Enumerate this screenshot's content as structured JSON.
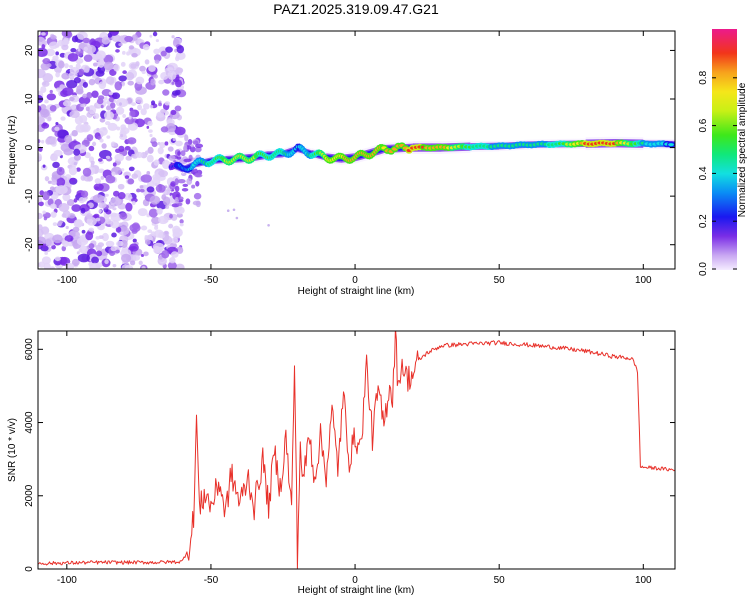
{
  "title": "PAZ1.2025.319.09.47.G21",
  "chart_data": [
    {
      "type": "heatmap",
      "xlabel": "Height of straight line (km)",
      "ylabel": "Frequency (Hz)",
      "xlim": [
        -110,
        111
      ],
      "ylim": [
        -25,
        24
      ],
      "xticks": [
        -100,
        -50,
        0,
        50,
        100
      ],
      "yticks": [
        -20,
        -10,
        0,
        10,
        20
      ],
      "noise_region_x": [
        -110,
        -60
      ],
      "ridge": {
        "x": [
          -64,
          -60,
          -56,
          -50,
          -45,
          -40,
          -35,
          -30,
          -25,
          -20,
          -15,
          -10,
          -5,
          0,
          5,
          10,
          20,
          30,
          40,
          50,
          60,
          70,
          80,
          90,
          100,
          111
        ],
        "freq": [
          -3.5,
          -4.5,
          -3.5,
          -2.7,
          -2.5,
          -2.3,
          -2.0,
          -1.5,
          -1.3,
          -0.3,
          -1.2,
          -2.0,
          -2.3,
          -2.0,
          -1.2,
          -0.3,
          0.0,
          0.0,
          0.2,
          0.3,
          0.6,
          0.7,
          0.8,
          0.9,
          0.8,
          0.7
        ],
        "amplitude": [
          0.25,
          0.35,
          0.45,
          0.55,
          0.7,
          0.75,
          0.7,
          0.6,
          0.55,
          0.4,
          0.55,
          0.8,
          0.85,
          0.9,
          0.9,
          0.85,
          0.95,
          0.9,
          0.6,
          0.5,
          0.5,
          0.55,
          0.95,
          0.95,
          0.5,
          0.4
        ]
      },
      "colorbar": {
        "label": "Normalized spectral amplitude",
        "ticks": [
          "0.0",
          "0.2",
          "0.4",
          "0.6",
          "0.8"
        ],
        "range": [
          0,
          1
        ]
      }
    },
    {
      "type": "line",
      "xlabel": "Height of straight line (km)",
      "ylabel": "SNR (10 * v/v)",
      "xlim": [
        -110,
        111
      ],
      "ylim": [
        0,
        6500
      ],
      "xticks": [
        -100,
        -50,
        0,
        50,
        100
      ],
      "yticks": [
        0,
        2000,
        4000,
        6000
      ],
      "series": [
        {
          "name": "SNR",
          "color": "#e8312a",
          "x": [
            -110,
            -90,
            -70,
            -60,
            -57,
            -56,
            -55,
            -54,
            -52,
            -50,
            -47,
            -45,
            -43,
            -40,
            -37,
            -35,
            -32,
            -30,
            -28,
            -26,
            -24,
            -22,
            -21,
            -20,
            -19,
            -18,
            -16,
            -14,
            -12,
            -10,
            -8,
            -6,
            -4,
            -2,
            0,
            2,
            4,
            6,
            8,
            10,
            12,
            13,
            14,
            15,
            16,
            18,
            20,
            22,
            25,
            30,
            40,
            50,
            60,
            70,
            80,
            90,
            96,
            97,
            98,
            99,
            100,
            105,
            111
          ],
          "y": [
            150,
            180,
            180,
            200,
            700,
            1500,
            4150,
            1600,
            2100,
            1700,
            2400,
            1500,
            2600,
            1800,
            2500,
            1700,
            3000,
            1700,
            3200,
            2200,
            3600,
            1600,
            5700,
            200,
            3400,
            2300,
            3700,
            2500,
            3600,
            2600,
            4300,
            2800,
            4700,
            3000,
            3600,
            3300,
            5600,
            3600,
            4900,
            3900,
            5100,
            4600,
            6550,
            4800,
            5700,
            5200,
            5300,
            5700,
            5900,
            6100,
            6150,
            6180,
            6120,
            6050,
            5950,
            5800,
            5750,
            5600,
            5400,
            2800,
            2780,
            2750,
            2700
          ]
        }
      ]
    }
  ]
}
